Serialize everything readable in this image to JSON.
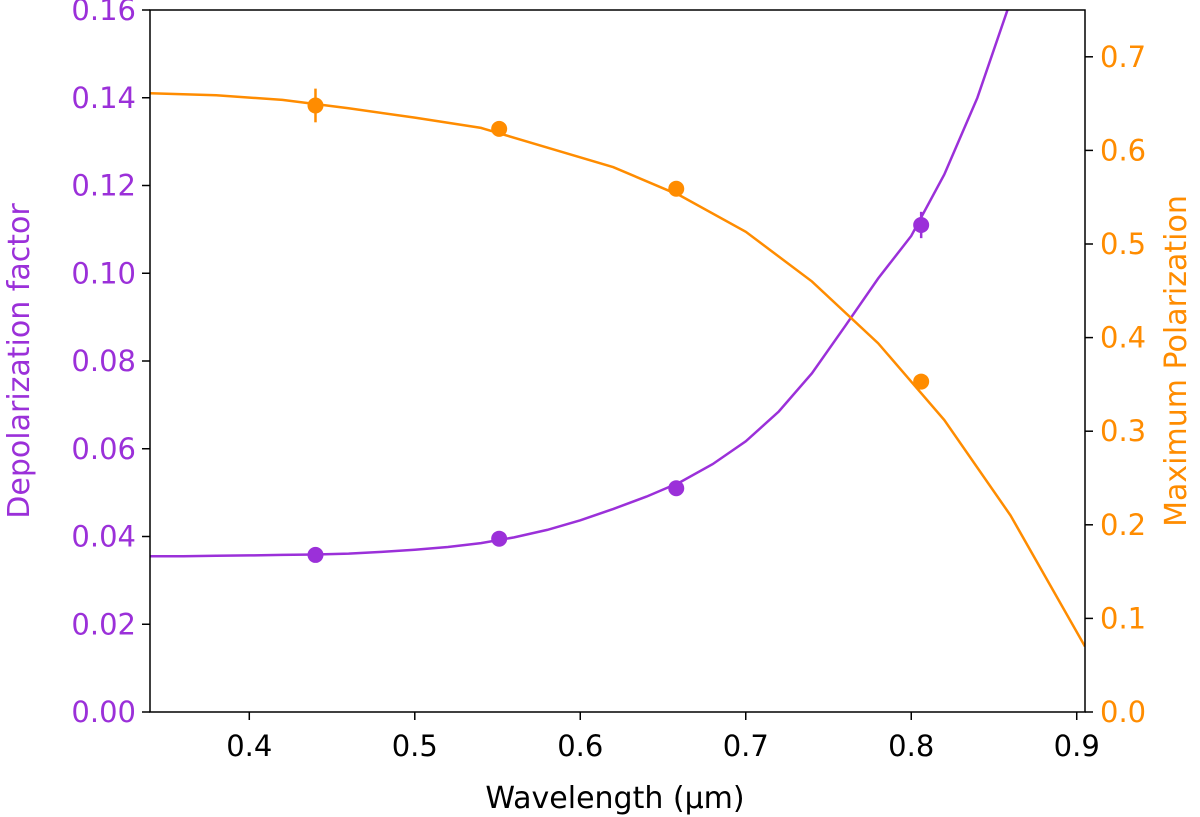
{
  "chart_data": {
    "type": "scatter",
    "xlabel": "Wavelength (μm)",
    "ylabel_left": "Depolarization factor",
    "ylabel_right": "Maximum Polarization",
    "xlim": [
      0.34,
      0.905
    ],
    "ylim_left": [
      0.0,
      0.16
    ],
    "ylim_right": [
      0.0,
      0.75
    ],
    "x_ticks": [
      "0.4",
      "0.5",
      "0.6",
      "0.7",
      "0.8",
      "0.9"
    ],
    "y_ticks_left": [
      "0.00",
      "0.02",
      "0.04",
      "0.06",
      "0.08",
      "0.10",
      "0.12",
      "0.14",
      "0.16"
    ],
    "y_ticks_right": [
      "0.0",
      "0.1",
      "0.2",
      "0.3",
      "0.4",
      "0.5",
      "0.6",
      "0.7"
    ],
    "grid": false,
    "series": [
      {
        "name": "Depolarization factor",
        "axis": "left",
        "color": "#9b30d9",
        "x": [
          0.44,
          0.551,
          0.658,
          0.806
        ],
        "y": [
          0.0358,
          0.0395,
          0.051,
          0.111
        ],
        "yerr": [
          0.0012,
          0.0008,
          0.0008,
          0.003
        ],
        "fit_curve": {
          "x": [
            0.34,
            0.36,
            0.38,
            0.4,
            0.42,
            0.44,
            0.46,
            0.48,
            0.5,
            0.52,
            0.54,
            0.56,
            0.58,
            0.6,
            0.62,
            0.64,
            0.66,
            0.68,
            0.7,
            0.72,
            0.74,
            0.76,
            0.78,
            0.8,
            0.82,
            0.84,
            0.86
          ],
          "y": [
            0.0355,
            0.0355,
            0.0356,
            0.0357,
            0.0358,
            0.0359,
            0.0361,
            0.0365,
            0.037,
            0.0376,
            0.0385,
            0.0398,
            0.0415,
            0.0437,
            0.0463,
            0.0491,
            0.0523,
            0.0565,
            0.0617,
            0.0685,
            0.0772,
            0.0879,
            0.0988,
            0.1085,
            0.1225,
            0.14,
            0.162
          ]
        }
      },
      {
        "name": "Maximum Polarization",
        "axis": "right",
        "color": "#ff8c00",
        "x": [
          0.44,
          0.551,
          0.658,
          0.806
        ],
        "y": [
          0.648,
          0.623,
          0.559,
          0.353
        ],
        "yerr": [
          0.018,
          0.008,
          0.008,
          0.008
        ],
        "fit_curve": {
          "x": [
            0.34,
            0.38,
            0.42,
            0.46,
            0.5,
            0.54,
            0.58,
            0.62,
            0.66,
            0.7,
            0.74,
            0.78,
            0.82,
            0.86,
            0.905
          ],
          "y": [
            0.661,
            0.659,
            0.654,
            0.645,
            0.635,
            0.624,
            0.603,
            0.582,
            0.552,
            0.513,
            0.46,
            0.394,
            0.312,
            0.21,
            0.07
          ]
        }
      }
    ]
  }
}
